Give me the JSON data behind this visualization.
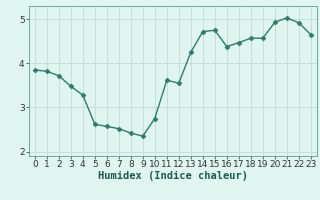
{
  "x": [
    0,
    1,
    2,
    3,
    4,
    5,
    6,
    7,
    8,
    9,
    10,
    11,
    12,
    13,
    14,
    15,
    16,
    17,
    18,
    19,
    20,
    21,
    22,
    23
  ],
  "y": [
    3.85,
    3.82,
    3.72,
    3.48,
    3.28,
    2.62,
    2.57,
    2.52,
    2.42,
    2.35,
    2.75,
    3.62,
    3.55,
    4.25,
    4.72,
    4.75,
    4.38,
    4.47,
    4.57,
    4.57,
    4.93,
    5.03,
    4.92,
    4.65
  ],
  "line_color": "#2d7d6e",
  "marker": "D",
  "marker_size": 2.5,
  "bg_color": "#e0f5f0",
  "grid_color": "#c0ddd8",
  "xlabel": "Humidex (Indice chaleur)",
  "xlabel_fontsize": 7.5,
  "ylim": [
    1.9,
    5.3
  ],
  "xlim": [
    -0.5,
    23.5
  ],
  "yticks": [
    2,
    3,
    4,
    5
  ],
  "xticks": [
    0,
    1,
    2,
    3,
    4,
    5,
    6,
    7,
    8,
    9,
    10,
    11,
    12,
    13,
    14,
    15,
    16,
    17,
    18,
    19,
    20,
    21,
    22,
    23
  ],
  "tick_fontsize": 6.5,
  "line_width": 1.0
}
